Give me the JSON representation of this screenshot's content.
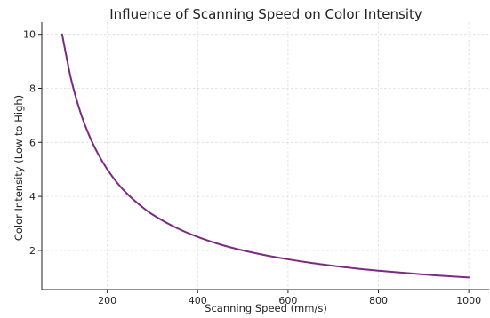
{
  "chart_data": {
    "type": "line",
    "title": "Influence of Scanning Speed on Color Intensity",
    "xlabel": "Scanning Speed (mm/s)",
    "ylabel": "Color Intensity (Low to High)",
    "xlim": [
      55,
      1045
    ],
    "ylim": [
      0.55,
      10.45
    ],
    "xticks": [
      200,
      400,
      600,
      800,
      1000
    ],
    "yticks": [
      2,
      4,
      6,
      8,
      10
    ],
    "grid": true,
    "legend": "none",
    "series": [
      {
        "color": "#7b2a82",
        "x": [
          100,
          120,
          140,
          160,
          180,
          200,
          225,
          250,
          275,
          300,
          350,
          400,
          450,
          500,
          550,
          600,
          650,
          700,
          750,
          800,
          850,
          900,
          950,
          1000
        ],
        "y": [
          10.0,
          8.33,
          7.14,
          6.25,
          5.56,
          5.0,
          4.44,
          4.0,
          3.64,
          3.33,
          2.86,
          2.5,
          2.22,
          2.0,
          1.82,
          1.67,
          1.54,
          1.43,
          1.33,
          1.25,
          1.18,
          1.11,
          1.05,
          1.0
        ]
      }
    ]
  }
}
